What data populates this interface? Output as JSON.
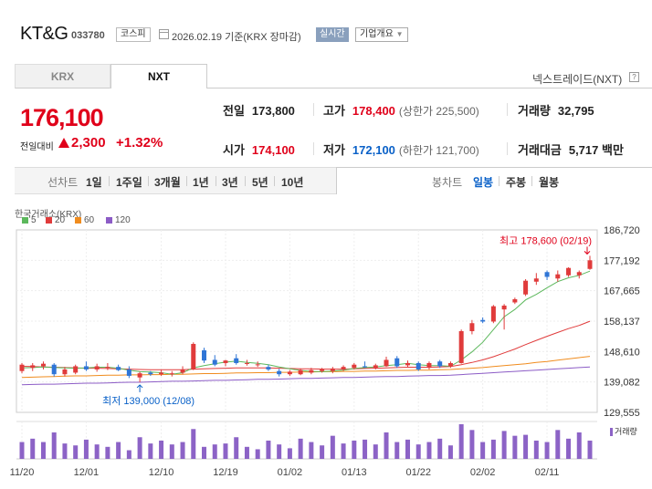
{
  "header": {
    "company_name": "KT&G",
    "stock_code": "033780",
    "market": "코스피",
    "date_text": "2026.02.19  기준(KRX 장마감)",
    "realtime_label": "실시간",
    "overview_label": "기업개요"
  },
  "tabs": [
    {
      "label": "KRX",
      "active": false
    },
    {
      "label": "NXT",
      "active": true
    }
  ],
  "nxt_label": "넥스트레이드(NXT)",
  "quote": {
    "price": "176,100",
    "change_label": "전일대비",
    "change_abs": "2,300",
    "change_pct": "+1.32%",
    "direction": "up"
  },
  "stats": {
    "prev_close": {
      "label": "전일",
      "value": "173,800"
    },
    "high": {
      "label": "고가",
      "value": "178,400",
      "sub": "(상한가 225,500)"
    },
    "volume": {
      "label": "거래량",
      "value": "32,795"
    },
    "open": {
      "label": "시가",
      "value": "174,100"
    },
    "low": {
      "label": "저가",
      "value": "172,100",
      "sub": "(하한가 121,700)"
    },
    "trade_value": {
      "label": "거래대금",
      "value": "5,717 백만"
    }
  },
  "period_bar": {
    "label": "선차트",
    "periods": [
      "1일",
      "1주일",
      "3개월",
      "1년",
      "3년",
      "5년",
      "10년"
    ],
    "candle_label": "봉차트",
    "candle_periods": [
      "일봉",
      "주봉",
      "월봉"
    ],
    "active_candle": "일봉"
  },
  "chart_source": "한국거래소(KRX)",
  "legend": [
    {
      "label": "5",
      "color": "#5cb85c"
    },
    {
      "label": "20",
      "color": "#e03b3b"
    },
    {
      "label": "60",
      "color": "#f08c1e"
    },
    {
      "label": "120",
      "color": "#8c5cc6"
    }
  ],
  "volume_label": "거래량",
  "colors": {
    "up": "#e0001a",
    "down": "#0a61c8",
    "up_candle": "#e03b3b",
    "down_candle": "#2f75d6",
    "volume": "#8c63c6"
  },
  "chart_data": {
    "type": "candlestick",
    "ylim": [
      129555,
      186720
    ],
    "yticks": [
      "186,720",
      "177,192",
      "167,665",
      "158,137",
      "148,610",
      "139,082",
      "129,555"
    ],
    "xticks": [
      {
        "i": 0,
        "label": "11/20"
      },
      {
        "i": 6,
        "label": "12/01"
      },
      {
        "i": 13,
        "label": "12/10"
      },
      {
        "i": 19,
        "label": "12/19"
      },
      {
        "i": 25,
        "label": "01/02"
      },
      {
        "i": 31,
        "label": "01/13"
      },
      {
        "i": 37,
        "label": "01/22"
      },
      {
        "i": 43,
        "label": "02/02"
      },
      {
        "i": 49,
        "label": "02/11"
      }
    ],
    "max_label": "최고 178,600 (02/19)",
    "min_label": "최저 139,000 (12/08)",
    "candles": [
      {
        "o": 142500,
        "h": 145000,
        "l": 141800,
        "c": 144500
      },
      {
        "o": 143500,
        "h": 145000,
        "l": 142500,
        "c": 144300
      },
      {
        "o": 144000,
        "h": 145500,
        "l": 143000,
        "c": 144800
      },
      {
        "o": 144500,
        "h": 145000,
        "l": 140800,
        "c": 141500
      },
      {
        "o": 141500,
        "h": 143800,
        "l": 140800,
        "c": 143000
      },
      {
        "o": 142000,
        "h": 144500,
        "l": 141500,
        "c": 144000
      },
      {
        "o": 144000,
        "h": 145500,
        "l": 142500,
        "c": 143000
      },
      {
        "o": 143000,
        "h": 144800,
        "l": 142300,
        "c": 144000
      },
      {
        "o": 143500,
        "h": 145000,
        "l": 142800,
        "c": 143800
      },
      {
        "o": 143800,
        "h": 144500,
        "l": 142500,
        "c": 142800
      },
      {
        "o": 143000,
        "h": 144000,
        "l": 140300,
        "c": 141000
      },
      {
        "o": 140500,
        "h": 142300,
        "l": 139000,
        "c": 141800
      },
      {
        "o": 142000,
        "h": 142500,
        "l": 141000,
        "c": 141500
      },
      {
        "o": 141500,
        "h": 142800,
        "l": 141000,
        "c": 142000
      },
      {
        "o": 141500,
        "h": 142500,
        "l": 140800,
        "c": 141800
      },
      {
        "o": 142000,
        "h": 144000,
        "l": 141500,
        "c": 143000
      },
      {
        "o": 143000,
        "h": 151500,
        "l": 142800,
        "c": 151000
      },
      {
        "o": 149000,
        "h": 149800,
        "l": 145000,
        "c": 145800
      },
      {
        "o": 146000,
        "h": 147500,
        "l": 144000,
        "c": 144500
      },
      {
        "o": 145000,
        "h": 146000,
        "l": 144000,
        "c": 145800
      },
      {
        "o": 146500,
        "h": 147800,
        "l": 144500,
        "c": 145000
      },
      {
        "o": 145000,
        "h": 146000,
        "l": 144200,
        "c": 145000
      },
      {
        "o": 144500,
        "h": 145500,
        "l": 143800,
        "c": 144600
      },
      {
        "o": 143800,
        "h": 144500,
        "l": 142500,
        "c": 143000
      },
      {
        "o": 142500,
        "h": 143200,
        "l": 140800,
        "c": 141500
      },
      {
        "o": 141500,
        "h": 142800,
        "l": 141000,
        "c": 142300
      },
      {
        "o": 141500,
        "h": 143300,
        "l": 141200,
        "c": 142800
      },
      {
        "o": 142000,
        "h": 143500,
        "l": 141500,
        "c": 142800
      },
      {
        "o": 142500,
        "h": 143500,
        "l": 142000,
        "c": 143000
      },
      {
        "o": 142500,
        "h": 143800,
        "l": 141800,
        "c": 143300
      },
      {
        "o": 143000,
        "h": 144300,
        "l": 142500,
        "c": 143800
      },
      {
        "o": 143500,
        "h": 145000,
        "l": 143000,
        "c": 144500
      },
      {
        "o": 144000,
        "h": 145500,
        "l": 143500,
        "c": 143800
      },
      {
        "o": 143500,
        "h": 144800,
        "l": 143000,
        "c": 144300
      },
      {
        "o": 144000,
        "h": 147000,
        "l": 143800,
        "c": 146000
      },
      {
        "o": 146500,
        "h": 147200,
        "l": 143500,
        "c": 144000
      },
      {
        "o": 144300,
        "h": 145800,
        "l": 143800,
        "c": 145000
      },
      {
        "o": 145000,
        "h": 145500,
        "l": 142500,
        "c": 143000
      },
      {
        "o": 143500,
        "h": 145500,
        "l": 143000,
        "c": 145000
      },
      {
        "o": 145500,
        "h": 146000,
        "l": 143500,
        "c": 144000
      },
      {
        "o": 144000,
        "h": 145500,
        "l": 143500,
        "c": 145000
      },
      {
        "o": 145000,
        "h": 155500,
        "l": 144800,
        "c": 155000
      },
      {
        "o": 155000,
        "h": 158500,
        "l": 154000,
        "c": 157500
      },
      {
        "o": 158500,
        "h": 159300,
        "l": 157500,
        "c": 158000
      },
      {
        "o": 158000,
        "h": 163200,
        "l": 157500,
        "c": 162800
      },
      {
        "o": 161800,
        "h": 163500,
        "l": 155500,
        "c": 163000
      },
      {
        "o": 164000,
        "h": 165500,
        "l": 163500,
        "c": 165000
      },
      {
        "o": 166500,
        "h": 171300,
        "l": 166000,
        "c": 170800
      },
      {
        "o": 170500,
        "h": 173200,
        "l": 169500,
        "c": 171500
      },
      {
        "o": 173500,
        "h": 174000,
        "l": 171000,
        "c": 172000
      },
      {
        "o": 171500,
        "h": 174000,
        "l": 170500,
        "c": 172800
      },
      {
        "o": 172500,
        "h": 175000,
        "l": 172000,
        "c": 174800
      },
      {
        "o": 172500,
        "h": 174000,
        "l": 171500,
        "c": 173500
      },
      {
        "o": 174500,
        "h": 178600,
        "l": 174200,
        "c": 177200
      }
    ],
    "ma5": [
      143500,
      143600,
      143800,
      143600,
      143500,
      143400,
      143500,
      143700,
      143700,
      143400,
      142800,
      142300,
      142200,
      142000,
      141500,
      142000,
      143500,
      144200,
      144800,
      145300,
      145600,
      145200,
      144900,
      144500,
      143800,
      143200,
      142700,
      142400,
      142300,
      142500,
      142800,
      143300,
      143600,
      143800,
      144200,
      144500,
      144900,
      144500,
      144200,
      144200,
      144000,
      146000,
      148500,
      151500,
      155500,
      159500,
      161800,
      164800,
      166500,
      168600,
      170500,
      171700,
      172500,
      173800
    ],
    "ma20": [
      144000,
      143900,
      143800,
      143700,
      143600,
      143500,
      143400,
      143400,
      143300,
      143200,
      143100,
      143000,
      142900,
      142900,
      142900,
      142900,
      143100,
      143200,
      143300,
      143400,
      143500,
      143500,
      143500,
      143500,
      143400,
      143300,
      143200,
      143200,
      143100,
      143100,
      143100,
      143200,
      143300,
      143400,
      143500,
      143600,
      143700,
      143700,
      143700,
      143800,
      143900,
      144500,
      145200,
      146000,
      147000,
      148200,
      149400,
      150800,
      152100,
      153400,
      154600,
      155800,
      156800,
      158100
    ],
    "ma60": [
      140500,
      140600,
      140700,
      140800,
      140900,
      141000,
      141000,
      141100,
      141200,
      141200,
      141300,
      141300,
      141400,
      141400,
      141500,
      141500,
      141600,
      141700,
      141700,
      141800,
      141900,
      141900,
      142000,
      142000,
      142100,
      142100,
      142200,
      142200,
      142300,
      142300,
      142400,
      142400,
      142500,
      142500,
      142600,
      142700,
      142700,
      142800,
      142800,
      142900,
      143000,
      143200,
      143400,
      143600,
      143900,
      144200,
      144500,
      144800,
      145200,
      145500,
      145900,
      146300,
      146700,
      147100
    ],
    "ma120": [
      138200,
      138300,
      138400,
      138400,
      138500,
      138600,
      138700,
      138700,
      138800,
      138900,
      139000,
      139000,
      139100,
      139200,
      139300,
      139300,
      139400,
      139500,
      139600,
      139600,
      139700,
      139800,
      139900,
      139900,
      140000,
      140100,
      140200,
      140200,
      140300,
      140400,
      140500,
      140500,
      140600,
      140700,
      140800,
      140800,
      140900,
      141000,
      141100,
      141100,
      141200,
      141400,
      141600,
      141800,
      142000,
      142200,
      142400,
      142600,
      142800,
      143000,
      143200,
      143400,
      143600,
      143800
    ],
    "volume": [
      35,
      42,
      35,
      55,
      32,
      28,
      40,
      30,
      25,
      35,
      18,
      45,
      32,
      38,
      30,
      35,
      62,
      25,
      30,
      32,
      45,
      25,
      20,
      38,
      30,
      22,
      42,
      35,
      28,
      48,
      32,
      38,
      40,
      30,
      55,
      35,
      40,
      30,
      35,
      42,
      28,
      72,
      60,
      35,
      40,
      58,
      48,
      50,
      38,
      35,
      60,
      42,
      55,
      38
    ]
  }
}
